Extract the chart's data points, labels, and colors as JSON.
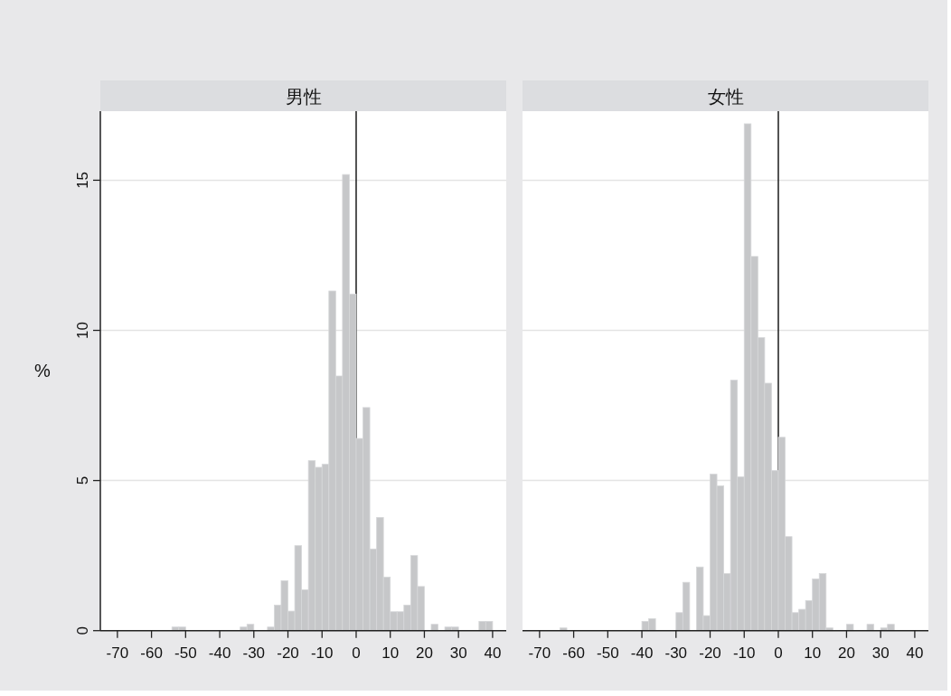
{
  "chart_data": [
    {
      "type": "histogram",
      "title": "男性",
      "ylabel": "%",
      "color": "#c6c7c9",
      "grid": "y",
      "bins": [
        -54,
        -52,
        -50,
        -48,
        -46,
        -44,
        -42,
        -40,
        -38,
        -36,
        -34,
        -32,
        -30,
        -28,
        -26,
        -24,
        -22,
        -20,
        -18,
        -16,
        -14,
        -12,
        -10,
        -8,
        -6,
        -4,
        -2,
        0,
        2,
        4,
        6,
        8,
        10,
        12,
        14,
        16,
        18,
        20,
        22,
        24,
        26,
        28,
        30,
        32,
        34,
        36,
        38,
        40
      ],
      "values": [
        0.12,
        0.12,
        0,
        0,
        0,
        0,
        0,
        0,
        0,
        0,
        0.12,
        0.21,
        0,
        0,
        0.12,
        0.85,
        1.66,
        0.65,
        2.83,
        1.36,
        5.66,
        5.44,
        5.54,
        11.31,
        8.48,
        15.19,
        11.21,
        6.4,
        7.43,
        2.72,
        3.77,
        1.78,
        0.63,
        0.63,
        0.85,
        2.5,
        1.47,
        0,
        0.21,
        0,
        0.12,
        0.12,
        0,
        0,
        0,
        0.31,
        0.31
      ],
      "xlim": [
        -75,
        44
      ],
      "xticks": [
        -70,
        -60,
        -50,
        -40,
        -30,
        -20,
        -10,
        0,
        10,
        20,
        30,
        40
      ],
      "ylim": [
        0,
        17.3
      ],
      "yticks": [
        0,
        5,
        10,
        15
      ],
      "ref_lines": [
        {
          "axis": "x",
          "value": 0,
          "color": "#1a1a1a"
        }
      ]
    },
    {
      "type": "histogram",
      "title": "女性",
      "color": "#c6c7c9",
      "grid": "y",
      "tick_labels": "x",
      "bins": [
        -64,
        -62,
        -60,
        -58,
        -56,
        -54,
        -52,
        -50,
        -48,
        -46,
        -44,
        -42,
        -40,
        -38,
        -36,
        -34,
        -32,
        -30,
        -28,
        -26,
        -24,
        -22,
        -20,
        -18,
        -16,
        -14,
        -12,
        -10,
        -8,
        -6,
        -4,
        -2,
        0,
        2,
        4,
        6,
        8,
        10,
        12,
        14,
        16,
        18,
        20,
        22,
        24,
        26,
        28,
        30,
        32,
        34
      ],
      "values": [
        0.09,
        0,
        0,
        0,
        0,
        0,
        0,
        0,
        0,
        0,
        0,
        0,
        0.31,
        0.4,
        0,
        0,
        0,
        0.6,
        1.61,
        0,
        2.12,
        0.5,
        5.21,
        4.82,
        1.9,
        8.34,
        5.12,
        16.88,
        12.46,
        9.76,
        8.24,
        5.33,
        6.44,
        3.13,
        0.6,
        0.71,
        1.0,
        1.72,
        1.9,
        0.09,
        0,
        0,
        0.21,
        0,
        0,
        0.21,
        0,
        0.09,
        0.21
      ],
      "xlim": [
        -75,
        44
      ],
      "xticks": [
        -70,
        -60,
        -50,
        -40,
        -30,
        -20,
        -10,
        0,
        10,
        20,
        30,
        40
      ],
      "ylim": [
        0,
        17.3
      ],
      "yticks": [
        0,
        5,
        10,
        15
      ],
      "ref_lines": [
        {
          "axis": "x",
          "value": 0,
          "color": "#1a1a1a"
        }
      ]
    }
  ]
}
